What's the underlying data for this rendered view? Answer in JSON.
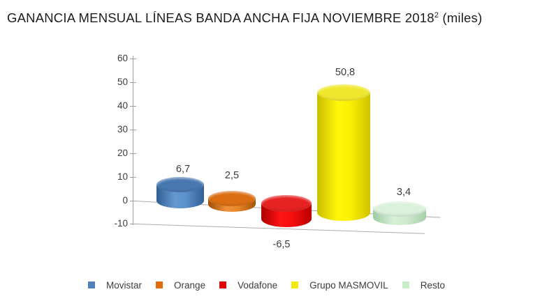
{
  "title": {
    "text": "GANANCIA MENSUAL LÍNEAS BANDA ANCHA FIJA NOVIEMBRE 2018",
    "superscript": "2",
    "suffix": " (miles)"
  },
  "chart_data": {
    "type": "bar",
    "style": "3d-cylinder",
    "title": "GANANCIA MENSUAL LÍNEAS BANDA ANCHA FIJA NOVIEMBRE 2018² (miles)",
    "categories": [
      "Movistar",
      "Orange",
      "Vodafone",
      "Grupo MASMOVIL",
      "Resto"
    ],
    "values": [
      6.7,
      2.5,
      -6.5,
      50.8,
      3.4
    ],
    "value_labels": [
      "6,7",
      "2,5",
      "-6,5",
      "50,8",
      "3,4"
    ],
    "ylim": [
      -10,
      60
    ],
    "yticks": [
      60,
      50,
      40,
      30,
      20,
      10,
      0,
      -10
    ],
    "gridlines_at": [
      0,
      -10
    ],
    "legend_position": "bottom",
    "axis_color": "#9f9f9f",
    "gridline_color": "#ababab",
    "text_color": "#3c3c3c",
    "series": [
      {
        "name": "Movistar",
        "value": 6.7,
        "label": "6,7",
        "swatch": "#4f81bd",
        "top": "#4878b0",
        "edge_dark": "#315e93",
        "side_light": "#6399d0",
        "side_mid": "#5b90c8",
        "edge_dark2": "#335f94"
      },
      {
        "name": "Orange",
        "value": 2.5,
        "label": "2,5",
        "swatch": "#e36c0a",
        "top": "#db6e12",
        "edge_dark": "#9c4d05",
        "side_light": "#ef9139",
        "side_mid": "#e8862b",
        "edge_dark2": "#a55207"
      },
      {
        "name": "Vodafone",
        "value": -6.5,
        "label": "-6,5",
        "swatch": "#dd0806",
        "top": "#e62222",
        "edge_dark": "#ab0000",
        "side_light": "#ff1414",
        "side_mid": "#f60d0d",
        "edge_dark2": "#b80000"
      },
      {
        "name": "Grupo MASMOVIL",
        "value": 50.8,
        "label": "50,8",
        "swatch": "#f2ea0a",
        "top": "#efe72e",
        "edge_dark": "#c9bd00",
        "side_light": "#fff60a",
        "side_mid": "#fbf000",
        "edge_dark2": "#cfc300"
      },
      {
        "name": "Resto",
        "value": 3.4,
        "label": "3,4",
        "swatch": "#c9ecca",
        "top": "#daf1da",
        "edge_dark": "#9dcba1",
        "side_light": "#d7efd7",
        "side_mid": "#cfeacf",
        "edge_dark2": "#a6d0a9"
      }
    ]
  }
}
